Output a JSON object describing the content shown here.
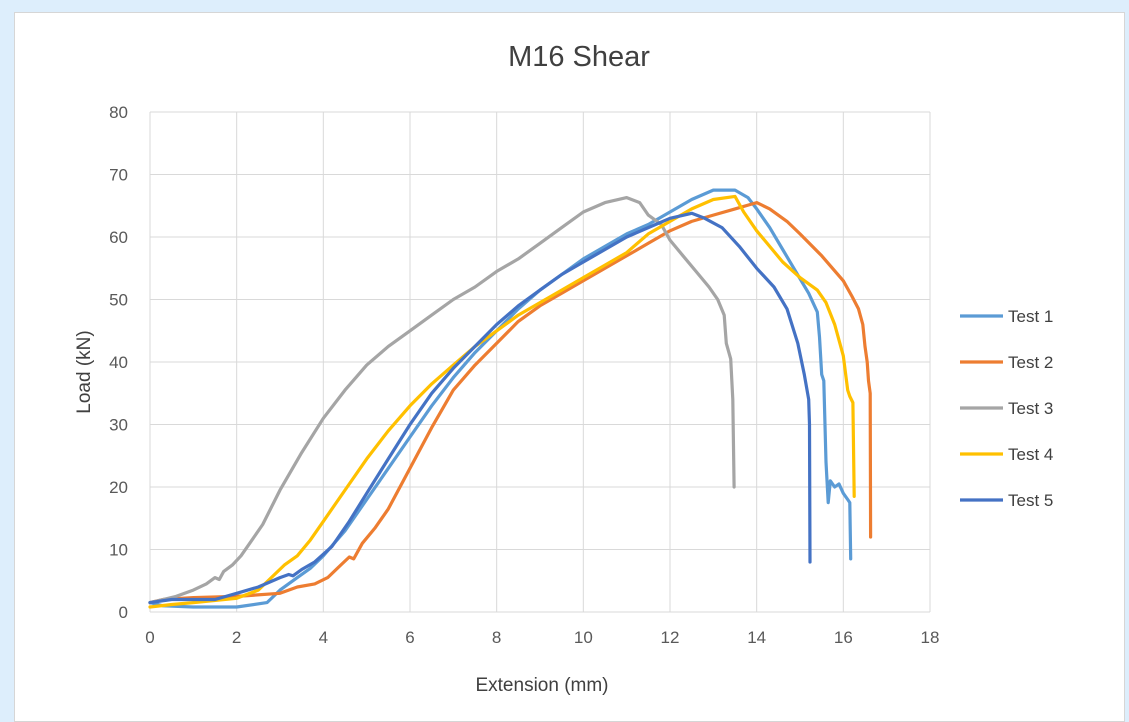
{
  "chart_data": {
    "type": "line",
    "title": "M16 Shear",
    "xlabel": "Extension (mm)",
    "ylabel": "Load (kN)",
    "xlim": [
      0,
      18
    ],
    "ylim": [
      0,
      80
    ],
    "x_ticks": [
      0,
      2,
      4,
      6,
      8,
      10,
      12,
      14,
      16,
      18
    ],
    "y_ticks": [
      0,
      10,
      20,
      30,
      40,
      50,
      60,
      70,
      80
    ],
    "grid": true,
    "legend_position": "right",
    "series": [
      {
        "name": "Test 1",
        "color": "#5b9bd5",
        "points": [
          [
            0,
            1.5
          ],
          [
            0.3,
            1.0
          ],
          [
            1,
            0.8
          ],
          [
            2,
            0.8
          ],
          [
            2.7,
            1.5
          ],
          [
            3.0,
            3.5
          ],
          [
            3.4,
            5.5
          ],
          [
            3.7,
            7
          ],
          [
            4,
            9
          ],
          [
            4.5,
            13
          ],
          [
            5,
            18
          ],
          [
            5.5,
            23
          ],
          [
            6,
            28
          ],
          [
            6.5,
            33
          ],
          [
            7,
            37.5
          ],
          [
            7.5,
            41.5
          ],
          [
            8,
            45
          ],
          [
            8.5,
            48.5
          ],
          [
            9,
            51.5
          ],
          [
            9.5,
            54
          ],
          [
            10,
            56.5
          ],
          [
            10.5,
            58.5
          ],
          [
            11,
            60.5
          ],
          [
            11.5,
            62
          ],
          [
            12,
            64
          ],
          [
            12.5,
            66
          ],
          [
            13,
            67.5
          ],
          [
            13.5,
            67.5
          ],
          [
            13.8,
            66.3
          ],
          [
            14,
            64.5
          ],
          [
            14.3,
            61.5
          ],
          [
            14.6,
            58
          ],
          [
            14.9,
            54.5
          ],
          [
            15.2,
            51
          ],
          [
            15.4,
            48
          ],
          [
            15.45,
            44
          ],
          [
            15.5,
            38
          ],
          [
            15.55,
            37
          ],
          [
            15.6,
            24
          ],
          [
            15.65,
            17.5
          ],
          [
            15.7,
            21
          ],
          [
            15.8,
            20
          ],
          [
            15.9,
            20.5
          ],
          [
            16,
            19
          ],
          [
            16.1,
            18
          ],
          [
            16.15,
            17.5
          ],
          [
            16.17,
            8.5
          ]
        ]
      },
      {
        "name": "Test 2",
        "color": "#ed7d31",
        "points": [
          [
            0,
            1.5
          ],
          [
            0.3,
            2.0
          ],
          [
            1,
            2.3
          ],
          [
            2,
            2.5
          ],
          [
            3,
            3
          ],
          [
            3.4,
            4
          ],
          [
            3.8,
            4.5
          ],
          [
            4.1,
            5.5
          ],
          [
            4.4,
            7.5
          ],
          [
            4.6,
            8.8
          ],
          [
            4.7,
            8.5
          ],
          [
            4.9,
            11
          ],
          [
            5.2,
            13.5
          ],
          [
            5.5,
            16.5
          ],
          [
            6,
            23
          ],
          [
            6.5,
            29.5
          ],
          [
            7,
            35.5
          ],
          [
            7.5,
            39.5
          ],
          [
            8,
            43
          ],
          [
            8.5,
            46.5
          ],
          [
            9,
            49
          ],
          [
            9.5,
            51
          ],
          [
            10,
            53
          ],
          [
            10.5,
            55
          ],
          [
            11,
            57
          ],
          [
            11.5,
            59
          ],
          [
            12,
            61
          ],
          [
            12.5,
            62.5
          ],
          [
            13,
            63.5
          ],
          [
            13.5,
            64.5
          ],
          [
            14,
            65.5
          ],
          [
            14.3,
            64.5
          ],
          [
            14.7,
            62.5
          ],
          [
            15,
            60.5
          ],
          [
            15.5,
            57
          ],
          [
            16,
            53
          ],
          [
            16.2,
            50.5
          ],
          [
            16.35,
            48.5
          ],
          [
            16.45,
            46
          ],
          [
            16.5,
            42.5
          ],
          [
            16.55,
            40
          ],
          [
            16.58,
            37
          ],
          [
            16.62,
            35
          ],
          [
            16.63,
            12
          ]
        ]
      },
      {
        "name": "Test 3",
        "color": "#a5a5a5",
        "points": [
          [
            0,
            1.5
          ],
          [
            0.3,
            2.0
          ],
          [
            0.6,
            2.5
          ],
          [
            1,
            3.5
          ],
          [
            1.3,
            4.5
          ],
          [
            1.5,
            5.5
          ],
          [
            1.6,
            5.2
          ],
          [
            1.7,
            6.5
          ],
          [
            1.9,
            7.5
          ],
          [
            2.1,
            9
          ],
          [
            2.3,
            11
          ],
          [
            2.6,
            14
          ],
          [
            3,
            19.5
          ],
          [
            3.5,
            25.5
          ],
          [
            4,
            31
          ],
          [
            4.5,
            35.5
          ],
          [
            5,
            39.5
          ],
          [
            5.5,
            42.5
          ],
          [
            6,
            45
          ],
          [
            6.5,
            47.5
          ],
          [
            7,
            50
          ],
          [
            7.5,
            52
          ],
          [
            8,
            54.5
          ],
          [
            8.5,
            56.5
          ],
          [
            9,
            59
          ],
          [
            9.5,
            61.5
          ],
          [
            10,
            64
          ],
          [
            10.5,
            65.5
          ],
          [
            11,
            66.3
          ],
          [
            11.3,
            65.5
          ],
          [
            11.5,
            63.5
          ],
          [
            11.8,
            62
          ],
          [
            12,
            59.5
          ],
          [
            12.3,
            57
          ],
          [
            12.6,
            54.5
          ],
          [
            12.9,
            52
          ],
          [
            13.1,
            50
          ],
          [
            13.25,
            47.5
          ],
          [
            13.3,
            43
          ],
          [
            13.4,
            40.5
          ],
          [
            13.45,
            34
          ],
          [
            13.48,
            20
          ]
        ]
      },
      {
        "name": "Test 4",
        "color": "#ffc000",
        "points": [
          [
            0,
            0.8
          ],
          [
            0.5,
            1.2
          ],
          [
            1,
            1.5
          ],
          [
            2,
            2.2
          ],
          [
            2.5,
            3.5
          ],
          [
            2.8,
            5.5
          ],
          [
            3.1,
            7.5
          ],
          [
            3.4,
            9
          ],
          [
            3.7,
            11.5
          ],
          [
            4,
            14.5
          ],
          [
            4.5,
            19.5
          ],
          [
            5,
            24.5
          ],
          [
            5.5,
            29
          ],
          [
            6,
            33
          ],
          [
            6.5,
            36.5
          ],
          [
            7,
            39.5
          ],
          [
            7.5,
            42.5
          ],
          [
            8,
            45
          ],
          [
            8.5,
            47.5
          ],
          [
            9,
            49.5
          ],
          [
            9.5,
            51.5
          ],
          [
            10,
            53.5
          ],
          [
            10.5,
            55.5
          ],
          [
            11,
            57.5
          ],
          [
            11.5,
            60.5
          ],
          [
            12,
            62.5
          ],
          [
            12.5,
            64.5
          ],
          [
            13,
            66
          ],
          [
            13.5,
            66.5
          ],
          [
            13.7,
            64
          ],
          [
            14,
            61
          ],
          [
            14.3,
            58.5
          ],
          [
            14.6,
            56
          ],
          [
            15,
            53.5
          ],
          [
            15.4,
            51.5
          ],
          [
            15.6,
            49.5
          ],
          [
            15.8,
            46
          ],
          [
            16,
            41
          ],
          [
            16.1,
            35.5
          ],
          [
            16.15,
            34.5
          ],
          [
            16.22,
            33.5
          ],
          [
            16.25,
            18.5
          ]
        ]
      },
      {
        "name": "Test 5",
        "color": "#4472c4",
        "points": [
          [
            0,
            1.5
          ],
          [
            0.5,
            2.0
          ],
          [
            1.5,
            2.0
          ],
          [
            2,
            3
          ],
          [
            2.5,
            4
          ],
          [
            3,
            5.5
          ],
          [
            3.2,
            6
          ],
          [
            3.3,
            5.8
          ],
          [
            3.5,
            6.8
          ],
          [
            3.8,
            8
          ],
          [
            4.2,
            10.5
          ],
          [
            4.6,
            14.5
          ],
          [
            5,
            19
          ],
          [
            5.5,
            24.5
          ],
          [
            6,
            30
          ],
          [
            6.5,
            35
          ],
          [
            7,
            39
          ],
          [
            7.5,
            42.5
          ],
          [
            8,
            46
          ],
          [
            8.5,
            49
          ],
          [
            9,
            51.5
          ],
          [
            9.5,
            54
          ],
          [
            10,
            56
          ],
          [
            10.5,
            58
          ],
          [
            11,
            60
          ],
          [
            11.5,
            61.5
          ],
          [
            12,
            63
          ],
          [
            12.5,
            63.8
          ],
          [
            12.8,
            63
          ],
          [
            13.2,
            61.5
          ],
          [
            13.6,
            58.5
          ],
          [
            14,
            55
          ],
          [
            14.4,
            52
          ],
          [
            14.7,
            48.5
          ],
          [
            14.95,
            43
          ],
          [
            15.1,
            38
          ],
          [
            15.2,
            34
          ],
          [
            15.22,
            30
          ],
          [
            15.23,
            8
          ]
        ]
      }
    ]
  }
}
